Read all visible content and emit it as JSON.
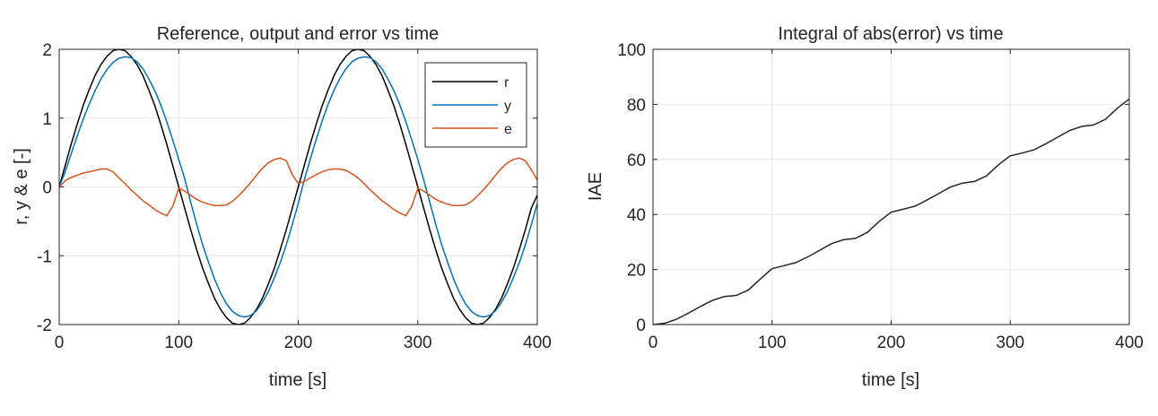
{
  "chart_data": [
    {
      "type": "line",
      "title": "Reference, output and error vs time",
      "xlabel": "time [s]",
      "ylabel": "r, y & e [-]",
      "xlim": [
        0,
        400
      ],
      "ylim": [
        -2,
        2
      ],
      "xticks": [
        0,
        100,
        200,
        300,
        400
      ],
      "yticks": [
        -2,
        -1,
        0,
        1,
        2
      ],
      "grid": true,
      "legend": "top-right",
      "colors": {
        "r": "#000000",
        "y": "#0072BD",
        "e": "#D95319"
      },
      "x": [
        0,
        5,
        10,
        15,
        20,
        25,
        30,
        35,
        40,
        45,
        50,
        55,
        60,
        65,
        70,
        75,
        80,
        85,
        90,
        95,
        100,
        105,
        110,
        115,
        120,
        125,
        130,
        135,
        140,
        145,
        150,
        155,
        160,
        165,
        170,
        175,
        180,
        185,
        190,
        195,
        200,
        205,
        210,
        215,
        220,
        225,
        230,
        235,
        240,
        245,
        250,
        255,
        260,
        265,
        270,
        275,
        280,
        285,
        290,
        295,
        300,
        305,
        310,
        315,
        320,
        325,
        330,
        335,
        340,
        345,
        350,
        355,
        360,
        365,
        370,
        375,
        380,
        385,
        390,
        395,
        400
      ],
      "series": [
        {
          "name": "r",
          "values": [
            0,
            0.31,
            0.62,
            0.91,
            1.18,
            1.41,
            1.62,
            1.78,
            1.9,
            1.98,
            2.0,
            1.98,
            1.9,
            1.78,
            1.62,
            1.41,
            1.18,
            0.91,
            0.62,
            0.31,
            0,
            -0.31,
            -0.62,
            -0.91,
            -1.18,
            -1.41,
            -1.62,
            -1.78,
            -1.9,
            -1.98,
            -2.0,
            -1.98,
            -1.9,
            -1.78,
            -1.62,
            -1.41,
            -1.18,
            -0.91,
            -0.62,
            -0.31,
            0,
            0.31,
            0.62,
            0.91,
            1.18,
            1.41,
            1.62,
            1.78,
            1.9,
            1.98,
            2.0,
            1.98,
            1.9,
            1.78,
            1.62,
            1.41,
            1.18,
            0.91,
            0.62,
            0.31,
            0,
            -0.31,
            -0.62,
            -0.91,
            -1.18,
            -1.41,
            -1.62,
            -1.78,
            -1.9,
            -1.98,
            -2.0,
            -1.98,
            -1.9,
            -1.78,
            -1.62,
            -1.41,
            -1.18,
            -0.91,
            -0.62,
            -0.31,
            -0.12
          ]
        },
        {
          "name": "y",
          "values": [
            0,
            0.22,
            0.48,
            0.74,
            0.98,
            1.2,
            1.4,
            1.57,
            1.71,
            1.81,
            1.87,
            1.89,
            1.88,
            1.82,
            1.72,
            1.57,
            1.4,
            1.19,
            0.95,
            0.68,
            0.4,
            0.12,
            -0.22,
            -0.54,
            -0.84,
            -1.1,
            -1.34,
            -1.54,
            -1.7,
            -1.81,
            -1.87,
            -1.89,
            -1.87,
            -1.8,
            -1.68,
            -1.52,
            -1.32,
            -1.1,
            -0.84,
            -0.55,
            -0.24,
            0.1,
            0.4,
            0.69,
            0.96,
            1.2,
            1.41,
            1.58,
            1.72,
            1.82,
            1.87,
            1.89,
            1.88,
            1.82,
            1.72,
            1.57,
            1.4,
            1.19,
            0.95,
            0.68,
            0.4,
            0.1,
            -0.22,
            -0.54,
            -0.84,
            -1.1,
            -1.34,
            -1.54,
            -1.7,
            -1.81,
            -1.87,
            -1.89,
            -1.87,
            -1.8,
            -1.68,
            -1.52,
            -1.32,
            -1.1,
            -0.84,
            -0.55,
            -0.24
          ]
        },
        {
          "name": "e",
          "values": [
            0,
            0.09,
            0.14,
            0.17,
            0.2,
            0.22,
            0.24,
            0.26,
            0.26,
            0.22,
            0.13,
            0.05,
            -0.04,
            -0.12,
            -0.2,
            -0.26,
            -0.33,
            -0.38,
            -0.42,
            -0.28,
            -0.02,
            -0.06,
            -0.12,
            -0.18,
            -0.22,
            -0.25,
            -0.27,
            -0.27,
            -0.26,
            -0.21,
            -0.13,
            -0.04,
            0.06,
            0.17,
            0.27,
            0.35,
            0.4,
            0.42,
            0.38,
            0.18,
            0.05,
            0.08,
            0.13,
            0.18,
            0.22,
            0.25,
            0.26,
            0.26,
            0.24,
            0.19,
            0.13,
            0.05,
            -0.04,
            -0.12,
            -0.2,
            -0.26,
            -0.33,
            -0.38,
            -0.42,
            -0.28,
            -0.02,
            -0.06,
            -0.12,
            -0.18,
            -0.22,
            -0.25,
            -0.27,
            -0.27,
            -0.26,
            -0.21,
            -0.13,
            -0.04,
            0.06,
            0.17,
            0.27,
            0.35,
            0.4,
            0.42,
            0.38,
            0.25,
            0.1
          ]
        }
      ]
    },
    {
      "type": "line",
      "title": "Integral of abs(error) vs time",
      "xlabel": "time [s]",
      "ylabel": "IAE",
      "xlim": [
        0,
        400
      ],
      "ylim": [
        0,
        100
      ],
      "xticks": [
        0,
        100,
        200,
        300,
        400
      ],
      "yticks": [
        0,
        20,
        40,
        60,
        80,
        100
      ],
      "grid": true,
      "colors": {
        "iae": "#262626"
      },
      "series": [
        {
          "x": [
            0,
            10,
            20,
            30,
            40,
            50,
            60,
            70,
            80,
            90,
            100,
            110,
            120,
            130,
            140,
            150,
            160,
            170,
            180,
            190,
            200,
            210,
            220,
            230,
            240,
            250,
            260,
            270,
            280,
            290,
            300,
            310,
            320,
            330,
            340,
            350,
            360,
            370,
            380,
            390,
            400
          ],
          "values": [
            0,
            0.5,
            2.0,
            4.2,
            6.6,
            8.8,
            10.2,
            10.6,
            12.5,
            16.5,
            20.3,
            21.4,
            22.5,
            24.6,
            27.0,
            29.4,
            30.8,
            31.3,
            33.5,
            37.5,
            40.8,
            41.9,
            43.0,
            45.2,
            47.6,
            50.0,
            51.4,
            52.0,
            54.0,
            58.0,
            61.3,
            62.3,
            63.5,
            65.7,
            68.1,
            70.5,
            72.0,
            72.5,
            74.6,
            78.6,
            82.0
          ]
        }
      ]
    }
  ]
}
